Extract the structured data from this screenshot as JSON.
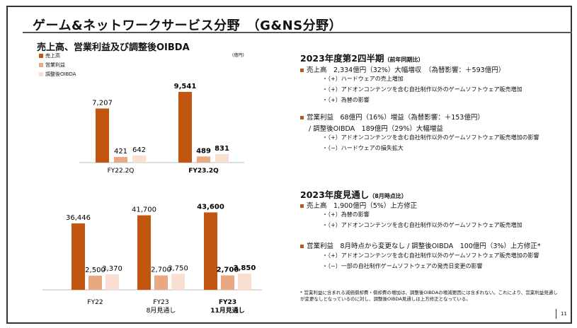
{
  "title": "ゲーム&ネットワークサービス分野　（G&NS分野）",
  "subtitle": "売上高、営業利益及び調整後OIBDA",
  "unit": "(億円)",
  "colors": {
    "sales": "#c0560f",
    "op": "#e9a882",
    "oibda": "#f8dfd2"
  },
  "chart_data": [
    {
      "type": "bar",
      "categories": [
        "FY22.2Q",
        "FY23.2Q"
      ],
      "legend": [
        "売上高",
        "営業利益",
        "調整後OIBDA"
      ],
      "series": [
        {
          "name": "売上高",
          "values": [
            7207,
            9541
          ],
          "labels": [
            "7,207",
            "9,541"
          ]
        },
        {
          "name": "営業利益",
          "values": [
            421,
            489
          ],
          "labels": [
            "421",
            "489"
          ]
        },
        {
          "name": "調整後OIBDA",
          "values": [
            642,
            831
          ],
          "labels": [
            "642",
            "831"
          ]
        }
      ]
    },
    {
      "type": "bar",
      "categories": [
        "FY22",
        "FY23\n8月見通し",
        "FY23\n11月見通し"
      ],
      "series": [
        {
          "name": "売上高",
          "values": [
            36446,
            41700,
            43600
          ],
          "labels": [
            "36,446",
            "41,700",
            "43,600"
          ]
        },
        {
          "name": "営業利益",
          "values": [
            2500,
            2700,
            2700
          ],
          "labels": [
            "2,500",
            "2,700",
            "2,700"
          ]
        },
        {
          "name": "調整後OIBDA",
          "values": [
            3370,
            3750,
            3850
          ],
          "labels": [
            "3,370",
            "3,750",
            "3,850"
          ]
        }
      ]
    }
  ],
  "q2": {
    "heading": "2023年度第2四半期",
    "heading_note": "（前年同期比）",
    "sales": "売上高　2,334億円（32%）大幅増収　（為替影響：＋593億円）",
    "sales_items": [
      "・（+）ハードウェアの売上増加",
      "・（+）アドオンコンテンツを含む自社制作以外のゲームソフトウェア販売増加",
      "・（+）為替の影響"
    ],
    "op": "営業利益　68億円（16%）増益（為替影響：＋153億円）",
    "oibda": "/ 調整後OIBDA　189億円（29%）大幅増益",
    "op_items": [
      "・（+）アドオンコンテンツを含む自社制作以外のゲームソフトウェア販売増加の影響",
      "・（−）ハードウェアの損失拡大"
    ]
  },
  "fc": {
    "heading": "2023年度見通し",
    "heading_note": "（8月時点比）",
    "sales": "売上高　1,900億円（5%）上方修正",
    "sales_items": [
      "・（+）為替の影響",
      "・（+）アドオンコンテンツを含む自社制作以外のゲームソフトウェア販売増加"
    ],
    "op": "営業利益　8月時点から変更なし / 調整後OIBDA　100億円（3%）上方修正*",
    "op_items": [
      "・（+）アドオンコンテンツを含む自社制作以外のゲームソフトウェア販売増加の影響",
      "・（−）一部の自社制作ゲームソフトウェアの発売日変更の影響"
    ]
  },
  "footnote": "* 営業利益に含まれる減価償却費・償却費の増加は、調整後OIBDAの増減要因には含まれない。これにより、営業利益見通しが変更なしとなっているのに対し、調整後OIBDA見通しは上方修正となっている。",
  "page": "11"
}
